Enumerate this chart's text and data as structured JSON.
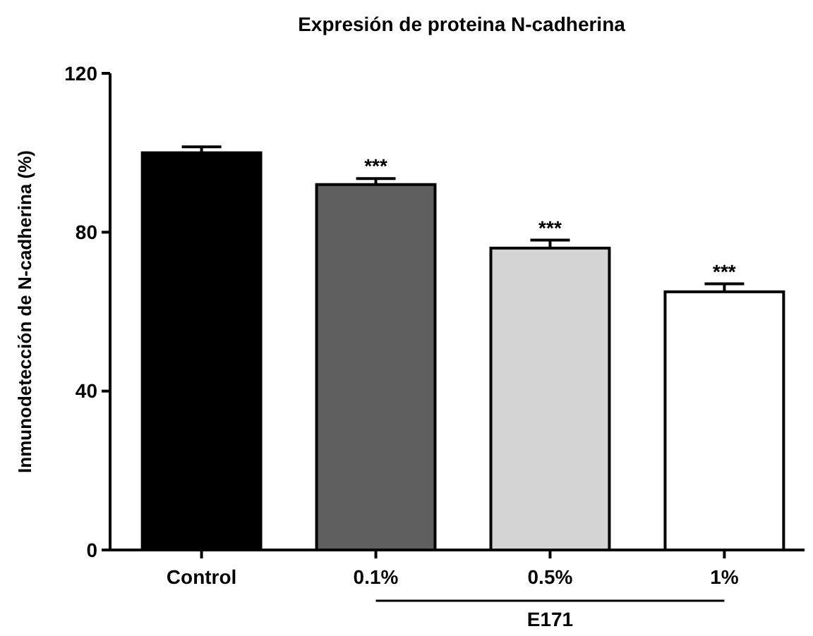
{
  "chart_data": {
    "type": "bar",
    "title": "Expresión de proteina N-cadherina",
    "ylabel": "Inmunodetección de N-cadherina (%)",
    "categories": [
      "Control",
      "0.1%",
      "0.5%",
      "1%"
    ],
    "values": [
      100,
      92,
      76,
      65
    ],
    "errors": [
      1.5,
      1.5,
      2,
      2
    ],
    "colors": [
      "#000000",
      "#5f5f5f",
      "#d4d4d4",
      "#ffffff"
    ],
    "ylim": [
      0,
      120
    ],
    "yticks": [
      0,
      40,
      80,
      120
    ],
    "annotations": [
      {
        "text": "***",
        "x": "0.1%",
        "y": 93.5
      },
      {
        "text": "***",
        "x": "0.5%",
        "y": 78
      },
      {
        "text": "***",
        "x": "1%",
        "y": 67
      },
      "E171"
    ]
  }
}
